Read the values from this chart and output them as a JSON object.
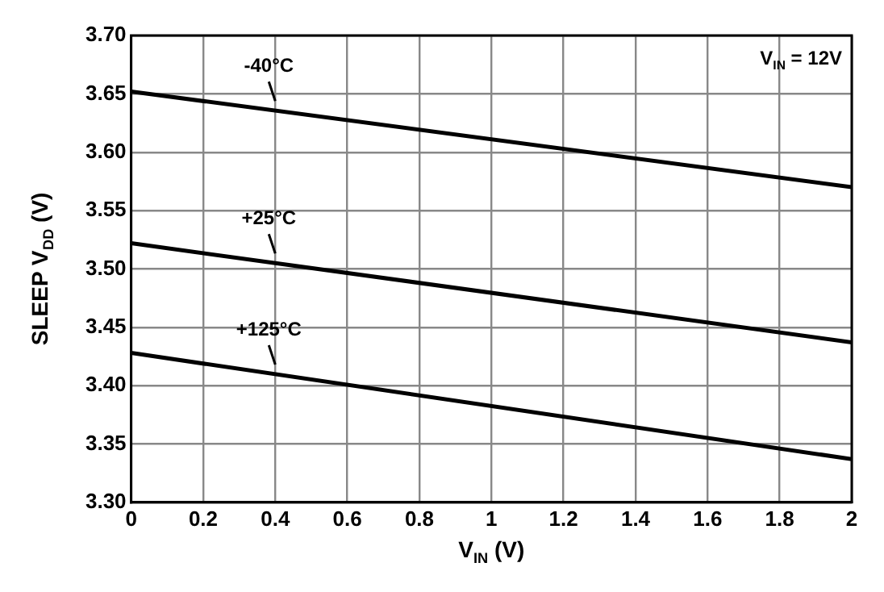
{
  "chart_data": {
    "type": "line",
    "xlabel": "V$_{IN}$ (V)",
    "ylabel": "SLEEP V$_{DD}$ (V)",
    "x": [
      0,
      2
    ],
    "series": [
      {
        "name": "-40°C",
        "color": "#000000",
        "values": [
          3.652,
          3.57
        ]
      },
      {
        "name": "+25°C",
        "color": "#000000",
        "values": [
          3.522,
          3.437
        ]
      },
      {
        "name": "+125°C",
        "color": "#000000",
        "values": [
          3.428,
          3.337
        ]
      }
    ],
    "xlim": [
      0,
      2
    ],
    "xticks": [
      0,
      0.2,
      0.4,
      0.6,
      0.8,
      1,
      1.2,
      1.4,
      1.6,
      1.8,
      2
    ],
    "ylim": [
      3.3,
      3.7
    ],
    "yticks": [
      {
        "value": 3.3,
        "label": "3.30"
      },
      3.35,
      {
        "value": 3.4,
        "label": "3.40"
      },
      3.45,
      {
        "value": 3.5,
        "label": "3.50"
      },
      3.55,
      {
        "value": 3.6,
        "label": "3.60"
      },
      3.65,
      {
        "value": 3.7,
        "label": "3.70"
      }
    ],
    "annotations": [
      "V$_{IN}$ = 12V"
    ],
    "grid": true,
    "legend": false,
    "marker": "none",
    "line_style": "solid"
  }
}
